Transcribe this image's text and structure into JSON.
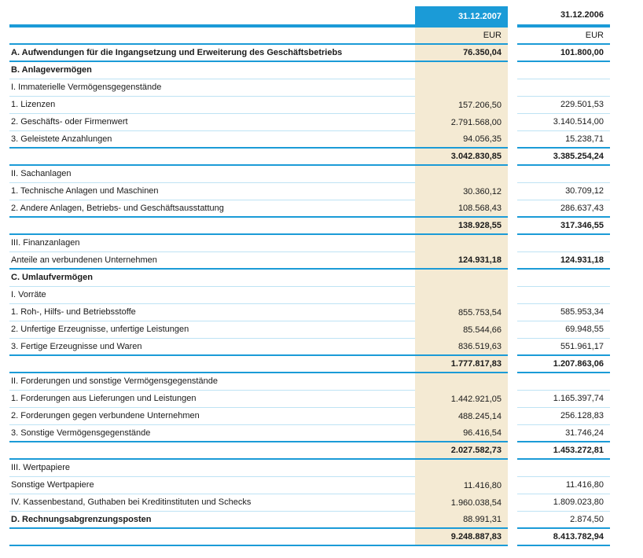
{
  "document": {
    "type": "balance-sheet-assets-table",
    "language": "de"
  },
  "colors": {
    "accent_blue": "#1B9BD7",
    "thin_line_blue": "#BEE3F4",
    "column_2007_beige": "#F4EAD3",
    "text": "#1A1A1A",
    "header_text_on_blue": "#FFFFFF"
  },
  "table": {
    "header": {
      "col2007": "31.12.2007",
      "col2006": "31.12.2006"
    },
    "currency_row": {
      "col2007": "EUR",
      "col2006": "EUR"
    },
    "rows": [
      {
        "label": "A. Aufwendungen für die Ingangsetzung und Erweiterung des Geschäftsbetriebs",
        "v2007": "76.350,04",
        "v2006": "101.800,00",
        "labelBold": true,
        "valuesBold": true,
        "bottom": "strong"
      },
      {
        "label": "B. Anlagevermögen",
        "v2007": "",
        "v2006": "",
        "labelBold": true,
        "valuesBold": false,
        "bottom": "thin"
      },
      {
        "label": "I. Immaterielle Vermögensgegenstände",
        "v2007": "",
        "v2006": "",
        "labelBold": false,
        "valuesBold": false,
        "bottom": "thin"
      },
      {
        "label": "1. Lizenzen",
        "v2007": "157.206,50",
        "v2006": "229.501,53",
        "labelBold": false,
        "valuesBold": false,
        "bottom": "thin"
      },
      {
        "label": "2. Geschäfts- oder Firmenwert",
        "v2007": "2.791.568,00",
        "v2006": "3.140.514,00",
        "labelBold": false,
        "valuesBold": false,
        "bottom": "thin"
      },
      {
        "label": "3. Geleistete Anzahlungen",
        "v2007": "94.056,35",
        "v2006": "15.238,71",
        "labelBold": false,
        "valuesBold": false,
        "bottom": "strong"
      },
      {
        "label": "",
        "v2007": "3.042.830,85",
        "v2006": "3.385.254,24",
        "labelBold": false,
        "valuesBold": true,
        "bottom": "strong"
      },
      {
        "label": "II. Sachanlagen",
        "v2007": "",
        "v2006": "",
        "labelBold": false,
        "valuesBold": false,
        "bottom": "thin"
      },
      {
        "label": "1. Technische Anlagen und Maschinen",
        "v2007": "30.360,12",
        "v2006": "30.709,12",
        "labelBold": false,
        "valuesBold": false,
        "bottom": "thin"
      },
      {
        "label": "2. Andere Anlagen, Betriebs- und Geschäftsausstattung",
        "v2007": "108.568,43",
        "v2006": "286.637,43",
        "labelBold": false,
        "valuesBold": false,
        "bottom": "strong"
      },
      {
        "label": "",
        "v2007": "138.928,55",
        "v2006": "317.346,55",
        "labelBold": false,
        "valuesBold": true,
        "bottom": "strong"
      },
      {
        "label": "III. Finanzanlagen",
        "v2007": "",
        "v2006": "",
        "labelBold": false,
        "valuesBold": false,
        "bottom": "thin"
      },
      {
        "label": "Anteile an verbundenen Unternehmen",
        "v2007": "124.931,18",
        "v2006": "124.931,18",
        "labelBold": false,
        "valuesBold": true,
        "bottom": "strong"
      },
      {
        "label": "C. Umlaufvermögen",
        "v2007": "",
        "v2006": "",
        "labelBold": true,
        "valuesBold": false,
        "bottom": "thin"
      },
      {
        "label": "I. Vorräte",
        "v2007": "",
        "v2006": "",
        "labelBold": false,
        "valuesBold": false,
        "bottom": "thin"
      },
      {
        "label": "1. Roh-, Hilfs- und Betriebsstoffe",
        "v2007": "855.753,54",
        "v2006": "585.953,34",
        "labelBold": false,
        "valuesBold": false,
        "bottom": "thin"
      },
      {
        "label": "2. Unfertige Erzeugnisse, unfertige Leistungen",
        "v2007": "85.544,66",
        "v2006": "69.948,55",
        "labelBold": false,
        "valuesBold": false,
        "bottom": "thin"
      },
      {
        "label": "3. Fertige Erzeugnisse und Waren",
        "v2007": "836.519,63",
        "v2006": "551.961,17",
        "labelBold": false,
        "valuesBold": false,
        "bottom": "strong"
      },
      {
        "label": "",
        "v2007": "1.777.817,83",
        "v2006": "1.207.863,06",
        "labelBold": false,
        "valuesBold": true,
        "bottom": "strong"
      },
      {
        "label": "II. Forderungen und sonstige Vermögensgegenstände",
        "v2007": "",
        "v2006": "",
        "labelBold": false,
        "valuesBold": false,
        "bottom": "thin"
      },
      {
        "label": "1. Forderungen aus Lieferungen und Leistungen",
        "v2007": "1.442.921,05",
        "v2006": "1.165.397,74",
        "labelBold": false,
        "valuesBold": false,
        "bottom": "thin"
      },
      {
        "label": "2. Forderungen gegen verbundene Unternehmen",
        "v2007": "488.245,14",
        "v2006": "256.128,83",
        "labelBold": false,
        "valuesBold": false,
        "bottom": "thin"
      },
      {
        "label": "3. Sonstige Vermögensgegenstände",
        "v2007": "96.416,54",
        "v2006": "31.746,24",
        "labelBold": false,
        "valuesBold": false,
        "bottom": "strong"
      },
      {
        "label": "",
        "v2007": "2.027.582,73",
        "v2006": "1.453.272,81",
        "labelBold": false,
        "valuesBold": true,
        "bottom": "strong"
      },
      {
        "label": "III. Wertpapiere",
        "v2007": "",
        "v2006": "",
        "labelBold": false,
        "valuesBold": false,
        "bottom": "thin"
      },
      {
        "label": "Sonstige Wertpapiere",
        "v2007": "11.416,80",
        "v2006": "11.416,80",
        "labelBold": false,
        "valuesBold": false,
        "bottom": "thin"
      },
      {
        "label": "IV. Kassenbestand, Guthaben bei Kreditinstituten und Schecks",
        "v2007": "1.960.038,54",
        "v2006": "1.809.023,80",
        "labelBold": false,
        "valuesBold": false,
        "bottom": "thin"
      },
      {
        "label": "D. Rechnungsabgrenzungsposten",
        "v2007": "88.991,31",
        "v2006": "2.874,50",
        "labelBold": true,
        "valuesBold": false,
        "bottom": "strong"
      },
      {
        "label": "",
        "v2007": "9.248.887,83",
        "v2006": "8.413.782,94",
        "labelBold": false,
        "valuesBold": true,
        "bottom": "strong"
      }
    ]
  }
}
